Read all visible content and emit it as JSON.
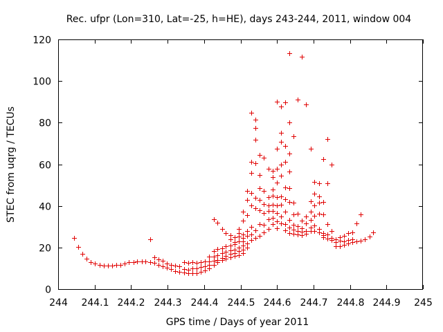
{
  "chart_data": {
    "type": "scatter",
    "title": "Rec. ufpr (Lon=310, Lat=-25, h=HE), days 243-244, 2011, window 004",
    "xlabel": "GPS time / Days of year 2011",
    "ylabel": "STEC from uqrg / TECUs",
    "xlim": [
      244,
      245
    ],
    "ylim": [
      0,
      120
    ],
    "x_ticks": [
      "244",
      "244.1",
      "244.2",
      "244.3",
      "244.4",
      "244.5",
      "244.6",
      "244.7",
      "244.8",
      "244.9",
      "245"
    ],
    "y_ticks": [
      "0",
      "20",
      "40",
      "60",
      "80",
      "100",
      "120"
    ],
    "grid": false,
    "marker": "plus",
    "color": "#e00000",
    "series": [
      {
        "points": [
          [
            244.043,
            24.5
          ],
          [
            244.055,
            20.2
          ],
          [
            244.067,
            17.1
          ],
          [
            244.078,
            14.6
          ],
          [
            244.09,
            13.0
          ],
          [
            244.101,
            12.2
          ],
          [
            244.113,
            11.6
          ],
          [
            244.125,
            11.3
          ],
          [
            244.136,
            11.2
          ],
          [
            244.148,
            11.3
          ],
          [
            244.159,
            11.5
          ],
          [
            244.171,
            11.8
          ],
          [
            244.182,
            12.3
          ],
          [
            244.194,
            12.8
          ],
          [
            244.206,
            13.0
          ],
          [
            244.217,
            13.2
          ],
          [
            244.229,
            13.3
          ],
          [
            244.24,
            13.2
          ],
          [
            244.252,
            23.9
          ],
          [
            244.252,
            13.1
          ],
          [
            244.263,
            15.4
          ],
          [
            244.263,
            12.7
          ],
          [
            244.275,
            14.3
          ],
          [
            244.275,
            11.8
          ],
          [
            244.287,
            13.6
          ],
          [
            244.287,
            10.9
          ],
          [
            244.298,
            12.4
          ],
          [
            244.298,
            10.2
          ],
          [
            244.31,
            11.6
          ],
          [
            244.31,
            9.5
          ],
          [
            244.321,
            11.3
          ],
          [
            244.321,
            8.8
          ],
          [
            244.333,
            11.0
          ],
          [
            244.333,
            8.4
          ],
          [
            244.345,
            13.1
          ],
          [
            244.345,
            9.8
          ],
          [
            244.345,
            8.0
          ],
          [
            244.356,
            12.5
          ],
          [
            244.356,
            9.4
          ],
          [
            244.356,
            7.8
          ],
          [
            244.368,
            13.0
          ],
          [
            244.368,
            10.1
          ],
          [
            244.368,
            7.6
          ],
          [
            244.379,
            12.6
          ],
          [
            244.379,
            9.9
          ],
          [
            244.379,
            7.7
          ],
          [
            244.391,
            12.9
          ],
          [
            244.391,
            10.6
          ],
          [
            244.391,
            8.2
          ],
          [
            244.402,
            13.3
          ],
          [
            244.402,
            11.1
          ],
          [
            244.402,
            9.0
          ],
          [
            244.414,
            15.6
          ],
          [
            244.414,
            13.2
          ],
          [
            244.414,
            11.5
          ],
          [
            244.414,
            10.0
          ],
          [
            244.426,
            33.5
          ],
          [
            244.426,
            18.4
          ],
          [
            244.426,
            15.6
          ],
          [
            244.426,
            13.5
          ],
          [
            244.426,
            11.8
          ],
          [
            244.437,
            32.0
          ],
          [
            244.437,
            19.2
          ],
          [
            244.437,
            16.2
          ],
          [
            244.437,
            14.1
          ],
          [
            244.437,
            12.8
          ],
          [
            244.449,
            29.0
          ],
          [
            244.449,
            19.6
          ],
          [
            244.449,
            17.2
          ],
          [
            244.449,
            15.1
          ],
          [
            244.449,
            13.9
          ],
          [
            244.46,
            26.8
          ],
          [
            244.46,
            20.5
          ],
          [
            244.46,
            18.1
          ],
          [
            244.46,
            16.0
          ],
          [
            244.46,
            14.6
          ],
          [
            244.472,
            25.9
          ],
          [
            244.472,
            24.0
          ],
          [
            244.472,
            20.9
          ],
          [
            244.472,
            18.7
          ],
          [
            244.472,
            16.9
          ],
          [
            244.472,
            15.3
          ],
          [
            244.484,
            24.8
          ],
          [
            244.484,
            22.6
          ],
          [
            244.484,
            21.5
          ],
          [
            244.484,
            19.0
          ],
          [
            244.484,
            17.4
          ],
          [
            244.484,
            15.8
          ],
          [
            244.495,
            29.0
          ],
          [
            244.495,
            26.9
          ],
          [
            244.495,
            25.2
          ],
          [
            244.495,
            22.9
          ],
          [
            244.495,
            20.1
          ],
          [
            244.495,
            18.4
          ],
          [
            244.495,
            16.3
          ],
          [
            244.507,
            37.2
          ],
          [
            244.507,
            33.0
          ],
          [
            244.507,
            26.4
          ],
          [
            244.507,
            24.5
          ],
          [
            244.507,
            23.0
          ],
          [
            244.507,
            21.1
          ],
          [
            244.507,
            19.0
          ],
          [
            244.507,
            17.2
          ],
          [
            244.518,
            47.3
          ],
          [
            244.518,
            43.0
          ],
          [
            244.518,
            35.7
          ],
          [
            244.518,
            28.0
          ],
          [
            244.518,
            25.6
          ],
          [
            244.518,
            22.1
          ],
          [
            244.518,
            20.0
          ],
          [
            244.53,
            84.8
          ],
          [
            244.53,
            61.0
          ],
          [
            244.53,
            55.9
          ],
          [
            244.53,
            46.2
          ],
          [
            244.53,
            40.1
          ],
          [
            244.53,
            30.0
          ],
          [
            244.53,
            26.3
          ],
          [
            244.53,
            23.7
          ],
          [
            244.541,
            81.5
          ],
          [
            244.541,
            77.6
          ],
          [
            244.541,
            71.8
          ],
          [
            244.541,
            60.4
          ],
          [
            244.541,
            44.0
          ],
          [
            244.541,
            38.9
          ],
          [
            244.541,
            28.4
          ],
          [
            244.541,
            24.6
          ],
          [
            244.553,
            64.4
          ],
          [
            244.553,
            55.0
          ],
          [
            244.553,
            48.6
          ],
          [
            244.553,
            43.0
          ],
          [
            244.553,
            38.0
          ],
          [
            244.553,
            31.4
          ],
          [
            244.553,
            25.7
          ],
          [
            244.564,
            63.2
          ],
          [
            244.564,
            47.2
          ],
          [
            244.564,
            40.9
          ],
          [
            244.564,
            36.5
          ],
          [
            244.564,
            31.0
          ],
          [
            244.564,
            27.1
          ],
          [
            244.576,
            58.0
          ],
          [
            244.576,
            44.3
          ],
          [
            244.576,
            40.3
          ],
          [
            244.576,
            37.5
          ],
          [
            244.576,
            33.5
          ],
          [
            244.576,
            29.0
          ],
          [
            244.588,
            57.0
          ],
          [
            244.588,
            54.0
          ],
          [
            244.588,
            48.0
          ],
          [
            244.588,
            45.0
          ],
          [
            244.588,
            40.6
          ],
          [
            244.588,
            37.5
          ],
          [
            244.588,
            34.2
          ],
          [
            244.588,
            31.2
          ],
          [
            244.599,
            90.2
          ],
          [
            244.599,
            67.4
          ],
          [
            244.599,
            58.0
          ],
          [
            244.599,
            51.3
          ],
          [
            244.599,
            44.3
          ],
          [
            244.599,
            40.2
          ],
          [
            244.599,
            36.7
          ],
          [
            244.599,
            32.5
          ],
          [
            244.599,
            29.4
          ],
          [
            244.611,
            87.6
          ],
          [
            244.611,
            75.1
          ],
          [
            244.611,
            70.7
          ],
          [
            244.611,
            60.0
          ],
          [
            244.611,
            54.6
          ],
          [
            244.611,
            44.5
          ],
          [
            244.611,
            40.6
          ],
          [
            244.611,
            35.0
          ],
          [
            244.611,
            31.5
          ],
          [
            244.622,
            89.9
          ],
          [
            244.622,
            68.9
          ],
          [
            244.622,
            61.2
          ],
          [
            244.622,
            48.8
          ],
          [
            244.622,
            43.2
          ],
          [
            244.622,
            37.2
          ],
          [
            244.622,
            31.4
          ],
          [
            244.622,
            28.1
          ],
          [
            244.634,
            113.2
          ],
          [
            244.634,
            80.1
          ],
          [
            244.634,
            65.1
          ],
          [
            244.634,
            56.5
          ],
          [
            244.634,
            48.6
          ],
          [
            244.634,
            42.0
          ],
          [
            244.634,
            33.3
          ],
          [
            244.634,
            29.5
          ],
          [
            244.634,
            27.0
          ],
          [
            244.645,
            73.3
          ],
          [
            244.645,
            41.5
          ],
          [
            244.645,
            36.0
          ],
          [
            244.645,
            31.0
          ],
          [
            244.645,
            28.6
          ],
          [
            244.645,
            26.6
          ],
          [
            244.657,
            91.2
          ],
          [
            244.657,
            36.1
          ],
          [
            244.657,
            30.2
          ],
          [
            244.657,
            28.0
          ],
          [
            244.657,
            26.3
          ],
          [
            244.668,
            111.8
          ],
          [
            244.668,
            33.0
          ],
          [
            244.668,
            29.4
          ],
          [
            244.668,
            27.6
          ],
          [
            244.668,
            25.8
          ],
          [
            244.68,
            88.9
          ],
          [
            244.68,
            35.0
          ],
          [
            244.68,
            31.6
          ],
          [
            244.68,
            28.0
          ],
          [
            244.68,
            26.6
          ],
          [
            244.692,
            67.5
          ],
          [
            244.692,
            42.2
          ],
          [
            244.692,
            37.3
          ],
          [
            244.692,
            33.2
          ],
          [
            244.692,
            29.5
          ],
          [
            244.692,
            27.8
          ],
          [
            244.703,
            51.4
          ],
          [
            244.703,
            46.0
          ],
          [
            244.703,
            40.2
          ],
          [
            244.703,
            35.4
          ],
          [
            244.703,
            30.6
          ],
          [
            244.703,
            27.9
          ],
          [
            244.715,
            50.8
          ],
          [
            244.715,
            44.4
          ],
          [
            244.715,
            41.5
          ],
          [
            244.715,
            36.3
          ],
          [
            244.715,
            29.0
          ],
          [
            244.715,
            27.2
          ],
          [
            244.726,
            62.4
          ],
          [
            244.726,
            42.0
          ],
          [
            244.726,
            35.9
          ],
          [
            244.726,
            27.0
          ],
          [
            244.726,
            25.9
          ],
          [
            244.726,
            24.9
          ],
          [
            244.738,
            72.2
          ],
          [
            244.738,
            50.9
          ],
          [
            244.738,
            31.2
          ],
          [
            244.738,
            26.2
          ],
          [
            244.738,
            24.4
          ],
          [
            244.749,
            59.8
          ],
          [
            244.749,
            28.0
          ],
          [
            244.749,
            24.5
          ],
          [
            244.749,
            23.7
          ],
          [
            244.761,
            24.0
          ],
          [
            244.761,
            22.6
          ],
          [
            244.761,
            20.5
          ],
          [
            244.772,
            24.8
          ],
          [
            244.772,
            23.4
          ],
          [
            244.772,
            20.7
          ],
          [
            244.784,
            25.5
          ],
          [
            244.784,
            22.9
          ],
          [
            244.784,
            21.4
          ],
          [
            244.795,
            26.8
          ],
          [
            244.795,
            23.6
          ],
          [
            244.795,
            22.0
          ],
          [
            244.807,
            27.3
          ],
          [
            244.807,
            24.0
          ],
          [
            244.807,
            22.5
          ],
          [
            244.818,
            31.6
          ],
          [
            244.818,
            22.8
          ],
          [
            244.83,
            35.9
          ],
          [
            244.83,
            23.2
          ],
          [
            244.841,
            24.0
          ],
          [
            244.853,
            25.4
          ],
          [
            244.864,
            27.3
          ]
        ]
      }
    ]
  }
}
